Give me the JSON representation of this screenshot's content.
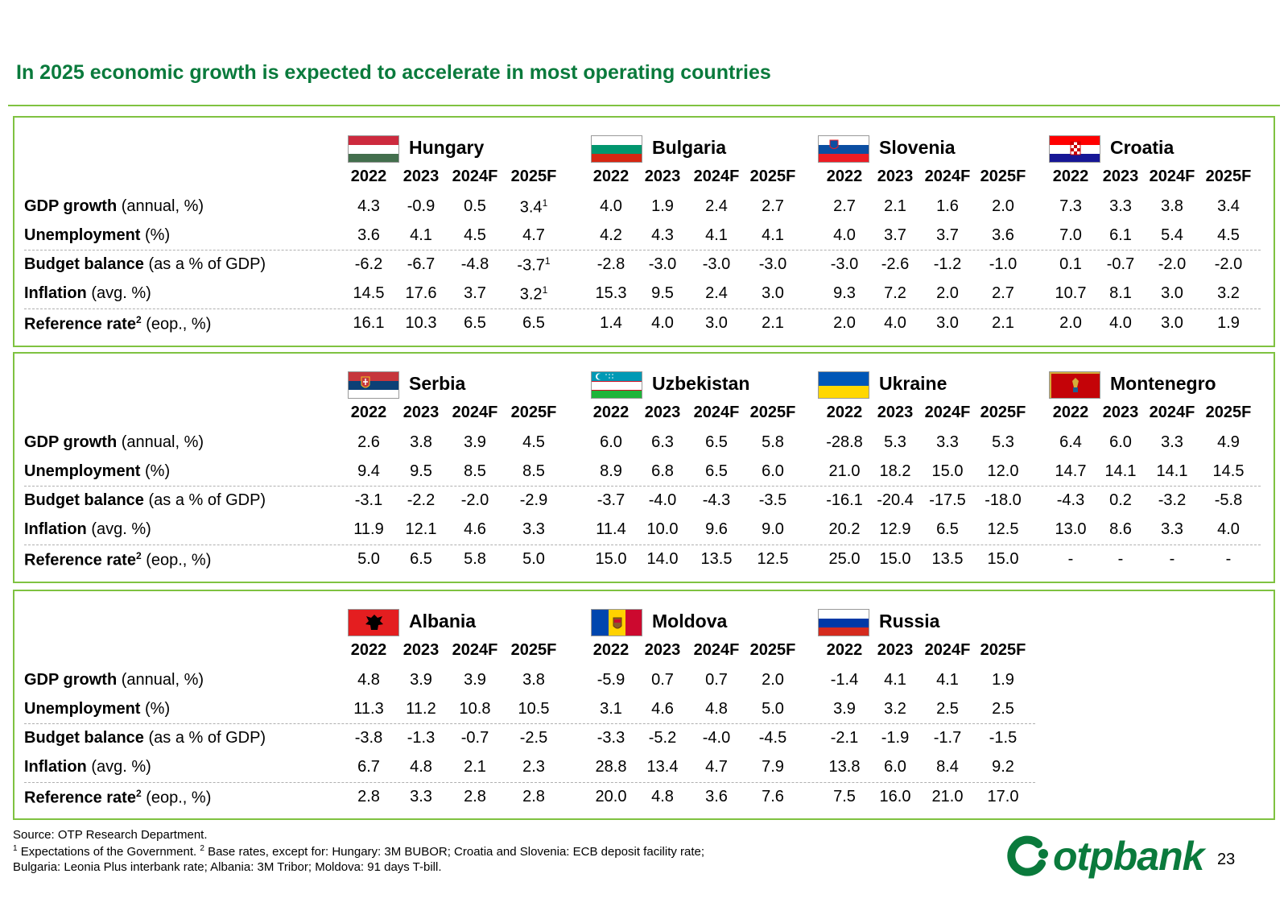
{
  "title": "In 2025 economic growth is expected to accelerate in most operating countries",
  "years": [
    "2022",
    "2023",
    "2024F",
    "2025F"
  ],
  "row_labels": [
    {
      "bold": "GDP growth",
      "rest": " (annual, %)",
      "sup": ""
    },
    {
      "bold": "Unemployment",
      "rest": " (%)",
      "sup": ""
    },
    {
      "bold": "Budget balance",
      "rest": " (as a % of GDP)",
      "sup": ""
    },
    {
      "bold": "Inflation",
      "rest": " (avg. %)",
      "sup": ""
    },
    {
      "bold": "Reference rate",
      "rest": " (eop., %)",
      "sup": "2"
    }
  ],
  "panels": [
    {
      "countries": [
        {
          "name": "Hungary",
          "flag": "hungary-flag",
          "rows": [
            [
              "4.3",
              "-0.9",
              "0.5",
              "3.4",
              "1"
            ],
            [
              "3.6",
              "4.1",
              "4.5",
              "4.7",
              ""
            ],
            [
              "-6.2",
              "-6.7",
              "-4.8",
              "-3.7",
              "1"
            ],
            [
              "14.5",
              "17.6",
              "3.7",
              "3.2",
              "1"
            ],
            [
              "16.1",
              "10.3",
              "6.5",
              "6.5",
              ""
            ]
          ]
        },
        {
          "name": "Bulgaria",
          "flag": "bulgaria-flag",
          "rows": [
            [
              "4.0",
              "1.9",
              "2.4",
              "2.7",
              ""
            ],
            [
              "4.2",
              "4.3",
              "4.1",
              "4.1",
              ""
            ],
            [
              "-2.8",
              "-3.0",
              "-3.0",
              "-3.0",
              ""
            ],
            [
              "15.3",
              "9.5",
              "2.4",
              "3.0",
              ""
            ],
            [
              "1.4",
              "4.0",
              "3.0",
              "2.1",
              ""
            ]
          ]
        },
        {
          "name": "Slovenia",
          "flag": "slovenia-flag",
          "rows": [
            [
              "2.7",
              "2.1",
              "1.6",
              "2.0",
              ""
            ],
            [
              "4.0",
              "3.7",
              "3.7",
              "3.6",
              ""
            ],
            [
              "-3.0",
              "-2.6",
              "-1.2",
              "-1.0",
              ""
            ],
            [
              "9.3",
              "7.2",
              "2.0",
              "2.7",
              ""
            ],
            [
              "2.0",
              "4.0",
              "3.0",
              "2.1",
              ""
            ]
          ]
        },
        {
          "name": "Croatia",
          "flag": "croatia-flag",
          "rows": [
            [
              "7.3",
              "3.3",
              "3.8",
              "3.4",
              ""
            ],
            [
              "7.0",
              "6.1",
              "5.4",
              "4.5",
              ""
            ],
            [
              "0.1",
              "-0.7",
              "-2.0",
              "-2.0",
              ""
            ],
            [
              "10.7",
              "8.1",
              "3.0",
              "3.2",
              ""
            ],
            [
              "2.0",
              "4.0",
              "3.0",
              "1.9",
              ""
            ]
          ]
        }
      ]
    },
    {
      "countries": [
        {
          "name": "Serbia",
          "flag": "serbia-flag",
          "rows": [
            [
              "2.6",
              "3.8",
              "3.9",
              "4.5",
              ""
            ],
            [
              "9.4",
              "9.5",
              "8.5",
              "8.5",
              ""
            ],
            [
              "-3.1",
              "-2.2",
              "-2.0",
              "-2.9",
              ""
            ],
            [
              "11.9",
              "12.1",
              "4.6",
              "3.3",
              ""
            ],
            [
              "5.0",
              "6.5",
              "5.8",
              "5.0",
              ""
            ]
          ]
        },
        {
          "name": "Uzbekistan",
          "flag": "uzbekistan-flag",
          "rows": [
            [
              "6.0",
              "6.3",
              "6.5",
              "5.8",
              ""
            ],
            [
              "8.9",
              "6.8",
              "6.5",
              "6.0",
              ""
            ],
            [
              "-3.7",
              "-4.0",
              "-4.3",
              "-3.5",
              ""
            ],
            [
              "11.4",
              "10.0",
              "9.6",
              "9.0",
              ""
            ],
            [
              "15.0",
              "14.0",
              "13.5",
              "12.5",
              ""
            ]
          ]
        },
        {
          "name": "Ukraine",
          "flag": "ukraine-flag",
          "rows": [
            [
              "-28.8",
              "5.3",
              "3.3",
              "5.3",
              ""
            ],
            [
              "21.0",
              "18.2",
              "15.0",
              "12.0",
              ""
            ],
            [
              "-16.1",
              "-20.4",
              "-17.5",
              "-18.0",
              ""
            ],
            [
              "20.2",
              "12.9",
              "6.5",
              "12.5",
              ""
            ],
            [
              "25.0",
              "15.0",
              "13.5",
              "15.0",
              ""
            ]
          ]
        },
        {
          "name": "Montenegro",
          "flag": "montenegro-flag",
          "rows": [
            [
              "6.4",
              "6.0",
              "3.3",
              "4.9",
              ""
            ],
            [
              "14.7",
              "14.1",
              "14.1",
              "14.5",
              ""
            ],
            [
              "-4.3",
              "0.2",
              "-3.2",
              "-5.8",
              ""
            ],
            [
              "13.0",
              "8.6",
              "3.3",
              "4.0",
              ""
            ],
            [
              "-",
              "-",
              "-",
              "-",
              ""
            ]
          ]
        }
      ]
    },
    {
      "countries": [
        {
          "name": "Albania",
          "flag": "albania-flag",
          "rows": [
            [
              "4.8",
              "3.9",
              "3.9",
              "3.8",
              ""
            ],
            [
              "11.3",
              "11.2",
              "10.8",
              "10.5",
              ""
            ],
            [
              "-3.8",
              "-1.3",
              "-0.7",
              "-2.5",
              ""
            ],
            [
              "6.7",
              "4.8",
              "2.1",
              "2.3",
              ""
            ],
            [
              "2.8",
              "3.3",
              "2.8",
              "2.8",
              ""
            ]
          ]
        },
        {
          "name": "Moldova",
          "flag": "moldova-flag",
          "rows": [
            [
              "-5.9",
              "0.7",
              "0.7",
              "2.0",
              ""
            ],
            [
              "3.1",
              "4.6",
              "4.8",
              "5.0",
              ""
            ],
            [
              "-3.3",
              "-5.2",
              "-4.0",
              "-4.5",
              ""
            ],
            [
              "28.8",
              "13.4",
              "4.7",
              "7.9",
              ""
            ],
            [
              "20.0",
              "4.8",
              "3.6",
              "7.6",
              ""
            ]
          ]
        },
        {
          "name": "Russia",
          "flag": "russia-flag",
          "rows": [
            [
              "-1.4",
              "4.1",
              "4.1",
              "1.9",
              ""
            ],
            [
              "3.9",
              "3.2",
              "2.5",
              "2.5",
              ""
            ],
            [
              "-2.1",
              "-1.9",
              "-1.7",
              "-1.5",
              ""
            ],
            [
              "13.8",
              "6.0",
              "8.4",
              "9.2",
              ""
            ],
            [
              "7.5",
              "16.0",
              "21.0",
              "17.0",
              ""
            ]
          ]
        }
      ]
    }
  ],
  "footer": {
    "source": "Source: OTP Research Department.",
    "note1_sup": "1",
    "note1": " Expectations of the Government. ",
    "note2_sup": "2",
    "note2": " Base rates, except for: Hungary: 3M BUBOR; Croatia and Slovenia: ECB deposit facility rate;",
    "note3": "Bulgaria: Leonia Plus interbank rate; Albania: 3M Tribor; Moldova: 91 days T-bill."
  },
  "logo": {
    "text": "otpbank",
    "icon": "otp-logo-icon",
    "color": "#0a7a3c"
  },
  "page_number": "23",
  "colors": {
    "title": "#0a7a3c",
    "panel_border": "#7fc241"
  }
}
